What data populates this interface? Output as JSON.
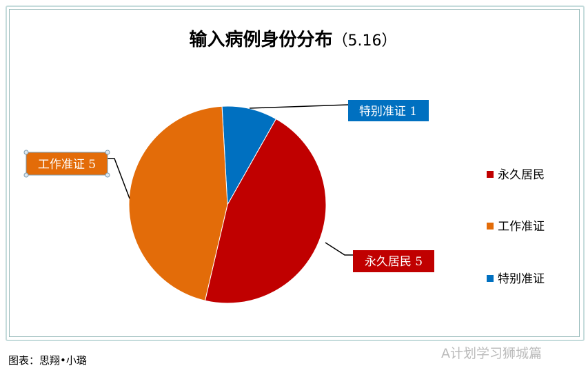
{
  "chart_data": {
    "type": "pie",
    "title": "输入病例身份分布",
    "title_suffix": "（5.16）",
    "categories": [
      "永久居民",
      "工作准证",
      "特别准证"
    ],
    "values": [
      5,
      5,
      1
    ],
    "colors": [
      "#c00000",
      "#e36c09",
      "#0070c0"
    ],
    "data_labels": [
      "永久居民 5",
      "工作准证 5",
      "特别准证 1"
    ],
    "legend": {
      "position": "right",
      "entries": [
        "永久居民",
        "工作准证",
        "特别准证"
      ]
    }
  },
  "caption": "图表：思翔•小璐",
  "watermark": "A计划学习狮城篇"
}
